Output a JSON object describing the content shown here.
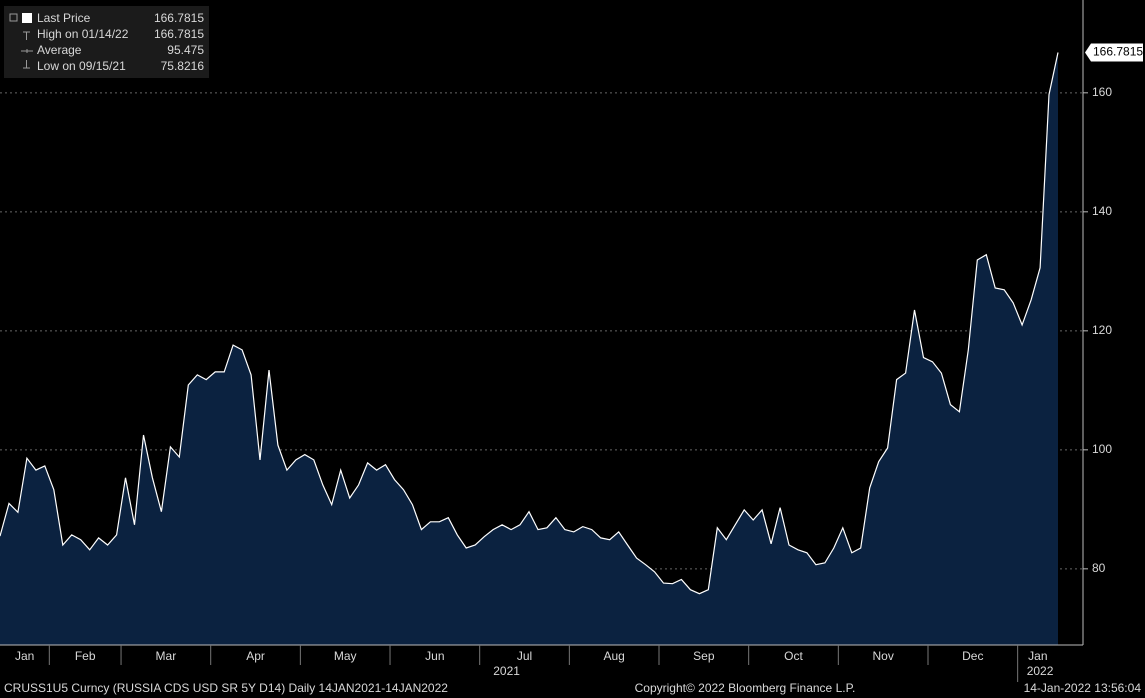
{
  "chart_data": {
    "type": "area",
    "legend": [
      {
        "name": "Last Price",
        "value": 166.7815
      },
      {
        "name": "High on 01/14/22",
        "value": 166.7815
      },
      {
        "name": "Average",
        "value": 95.475
      },
      {
        "name": "Low on 09/15/21",
        "value": 75.8216
      }
    ],
    "categories": [
      "Jan",
      null,
      null,
      null,
      null,
      null,
      "Feb",
      null,
      null,
      null,
      null,
      null,
      null,
      null,
      "Mar",
      null,
      null,
      null,
      null,
      null,
      null,
      null,
      null,
      null,
      "Apr",
      null,
      null,
      null,
      null,
      null,
      null,
      null,
      null,
      null,
      "May",
      null,
      null,
      null,
      null,
      null,
      null,
      null,
      null,
      null,
      "Jun",
      null,
      null,
      null,
      null,
      null,
      null,
      null,
      null,
      null,
      "Jul",
      null,
      null,
      null,
      null,
      null,
      null,
      null,
      null,
      null,
      "Aug",
      null,
      null,
      null,
      null,
      null,
      null,
      null,
      null,
      null,
      "Sep",
      null,
      null,
      null,
      null,
      null,
      null,
      null,
      null,
      null,
      "Oct",
      null,
      null,
      null,
      null,
      null,
      null,
      null,
      null,
      null,
      "Nov",
      null,
      null,
      null,
      null,
      null,
      null,
      null,
      null,
      null,
      "Dec",
      null,
      null,
      null,
      null,
      null,
      null,
      null,
      null,
      null,
      "Jan",
      null,
      null,
      null,
      null
    ],
    "year_labels": [
      "2021",
      "2022"
    ],
    "series": [
      {
        "name": "Last Price",
        "color": "#ffffff",
        "fill": "#0b2240",
        "values": [
          85.5,
          91,
          89.5,
          98.6,
          96.6,
          97.3,
          93.3,
          84,
          85.7,
          84.9,
          83.2,
          85.2,
          84,
          85.7,
          95.3,
          87.4,
          102.5,
          95.3,
          89.6,
          100.5,
          98.8,
          110.9,
          112.6,
          111.8,
          113.1,
          113.1,
          117.6,
          116.8,
          112.6,
          98.3,
          113.4,
          100.8,
          96.6,
          98.3,
          99.2,
          98.3,
          94.1,
          90.8,
          96.6,
          91.9,
          94.1,
          97.8,
          96.6,
          97.5,
          95,
          93.3,
          90.8,
          86.6,
          87.9,
          87.9,
          88.6,
          85.7,
          83.5,
          84,
          85.4,
          86.6,
          87.4,
          86.6,
          87.4,
          89.6,
          86.6,
          86.9,
          88.6,
          86.6,
          86.2,
          87.1,
          86.6,
          85.2,
          84.9,
          86.2,
          84,
          81.8,
          80.7,
          79.5,
          77.6,
          77.5,
          78.2,
          76.5,
          75.8216,
          76.5,
          86.9,
          84.9,
          87.4,
          89.9,
          88.2,
          89.9,
          84.2,
          90.3,
          84,
          83.2,
          82.7,
          80.7,
          81,
          83.5,
          86.9,
          82.7,
          83.5,
          93.6,
          98,
          100.3,
          111.8,
          112.9,
          123.5,
          115.5,
          114.8,
          112.9,
          107.6,
          106.4,
          116.8,
          131.9,
          132.8,
          127.2,
          126.9,
          124.7,
          121,
          125.2,
          130.6,
          159.7,
          166.7815
        ]
      }
    ],
    "ylim": [
      67.2,
      175.6
    ],
    "yticks": [
      80,
      100,
      120,
      140,
      160
    ],
    "grid": true,
    "footer": {
      "left": "CRUSS1U5 Curncy (RUSSIA CDS USD SR 5Y D14)  Daily 14JAN2021-14JAN2022",
      "center": "Copyright© 2022 Bloomberg Finance L.P.",
      "right": "14-Jan-2022 13:56:04"
    }
  }
}
